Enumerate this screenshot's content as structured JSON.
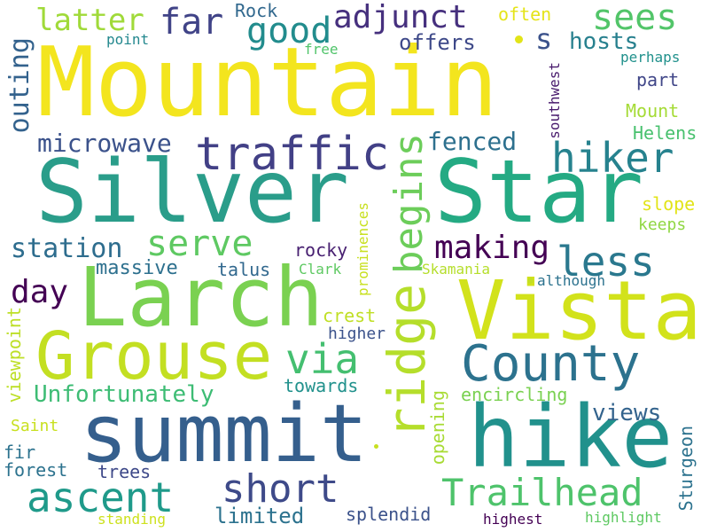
{
  "word_cloud": {
    "background": "#ffffff",
    "palette": "viridis",
    "words": {
      "mountain": {
        "text": "Mountain",
        "color": "#f3e51e"
      },
      "silver": {
        "text": "Silver",
        "color": "#2a9d8a"
      },
      "star": {
        "text": "Star",
        "color": "#24aa83"
      },
      "larch": {
        "text": "Larch",
        "color": "#7ad151"
      },
      "vista": {
        "text": "Vista",
        "color": "#d2e21b"
      },
      "grouse": {
        "text": "Grouse",
        "color": "#c3df22"
      },
      "summit": {
        "text": "summit",
        "color": "#355f8d"
      },
      "hike": {
        "text": "hike",
        "color": "#21918c"
      },
      "ridge": {
        "text": "ridge",
        "color": "#b5de2b"
      },
      "begins": {
        "text": "begins",
        "color": "#6ccd5a"
      },
      "county": {
        "text": "County",
        "color": "#2c728e"
      },
      "trailhead": {
        "text": "Trailhead",
        "color": "#4ec36b"
      },
      "ascent": {
        "text": "ascent",
        "color": "#1f9a8a"
      },
      "short": {
        "text": "short",
        "color": "#3e4a89"
      },
      "traffic": {
        "text": "traffic",
        "color": "#424086"
      },
      "hiker": {
        "text": "hiker",
        "color": "#26828e"
      },
      "less": {
        "text": "less",
        "color": "#2a788e"
      },
      "serve": {
        "text": "serve",
        "color": "#5ec962"
      },
      "via": {
        "text": "via",
        "color": "#44bf70"
      },
      "far": {
        "text": "far",
        "color": "#404387"
      },
      "good": {
        "text": "good",
        "color": "#228c8d"
      },
      "sees": {
        "text": "sees",
        "color": "#52c569"
      },
      "adjunct": {
        "text": "adjunct",
        "color": "#46307e"
      },
      "latter": {
        "text": "latter",
        "color": "#a0da39"
      },
      "outing": {
        "text": "outing",
        "color": "#33628d"
      },
      "microwave": {
        "text": "microwave",
        "color": "#3b528b"
      },
      "making": {
        "text": "making",
        "color": "#440154"
      },
      "day": {
        "text": "day",
        "color": "#440154"
      },
      "station": {
        "text": "station",
        "color": "#2e6d8e"
      },
      "fenced": {
        "text": "fenced",
        "color": "#2d708e"
      },
      "unfortunately": {
        "text": "Unfortunately",
        "color": "#3dbc74"
      },
      "s": {
        "text": "s",
        "color": "#3b528b"
      },
      "hosts": {
        "text": "hosts",
        "color": "#27808e"
      },
      "offers": {
        "text": "offers",
        "color": "#3e4989"
      },
      "views": {
        "text": "views",
        "color": "#33638d"
      },
      "limited": {
        "text": "limited",
        "color": "#2c728e"
      },
      "rock": {
        "text": "Rock",
        "color": "#31688e"
      },
      "often": {
        "text": "often",
        "color": "#e5e419"
      },
      "point": {
        "text": "point",
        "color": "#23888e"
      },
      "free": {
        "text": "free",
        "color": "#50c46a"
      },
      "southwest": {
        "text": "southwest",
        "color": "#481a6c"
      },
      "perhaps": {
        "text": "perhaps",
        "color": "#21918c"
      },
      "part": {
        "text": "part",
        "color": "#404688"
      },
      "mount": {
        "text": "Mount",
        "color": "#a5db36"
      },
      "helens": {
        "text": "Helens",
        "color": "#48c16e"
      },
      "slope": {
        "text": "slope",
        "color": "#e2e418"
      },
      "keeps": {
        "text": "keeps",
        "color": "#90d743"
      },
      "rocky": {
        "text": "rocky",
        "color": "#482071"
      },
      "massive": {
        "text": "massive",
        "color": "#2d708e"
      },
      "talus": {
        "text": "talus",
        "color": "#31688e"
      },
      "clark": {
        "text": "Clark",
        "color": "#5ec962"
      },
      "prominences": {
        "text": "prominences",
        "color": "#c8e020"
      },
      "skamania": {
        "text": "Skamania",
        "color": "#b5de2b"
      },
      "although": {
        "text": "although",
        "color": "#2c728e"
      },
      "crest": {
        "text": "crest",
        "color": "#c0df25"
      },
      "higher": {
        "text": "higher",
        "color": "#3b528b"
      },
      "viewpoint": {
        "text": "viewpoint",
        "color": "#bddf26"
      },
      "towards": {
        "text": "towards",
        "color": "#21918c"
      },
      "encircling": {
        "text": "encircling",
        "color": "#7ad151"
      },
      "opening": {
        "text": "opening",
        "color": "#a8db34"
      },
      "saint": {
        "text": "Saint",
        "color": "#c8e020"
      },
      "fir": {
        "text": "fir",
        "color": "#2c728e"
      },
      "forest": {
        "text": "forest",
        "color": "#2c728e"
      },
      "trees": {
        "text": "trees",
        "color": "#3e4989"
      },
      "sturgeon": {
        "text": "Sturgeon",
        "color": "#2c728e"
      },
      "splendid": {
        "text": "splendid",
        "color": "#3b528b"
      },
      "standing": {
        "text": "standing",
        "color": "#cde11d"
      },
      "highest": {
        "text": "highest",
        "color": "#440154"
      },
      "highlight": {
        "text": "highlight",
        "color": "#5ec962"
      }
    }
  }
}
